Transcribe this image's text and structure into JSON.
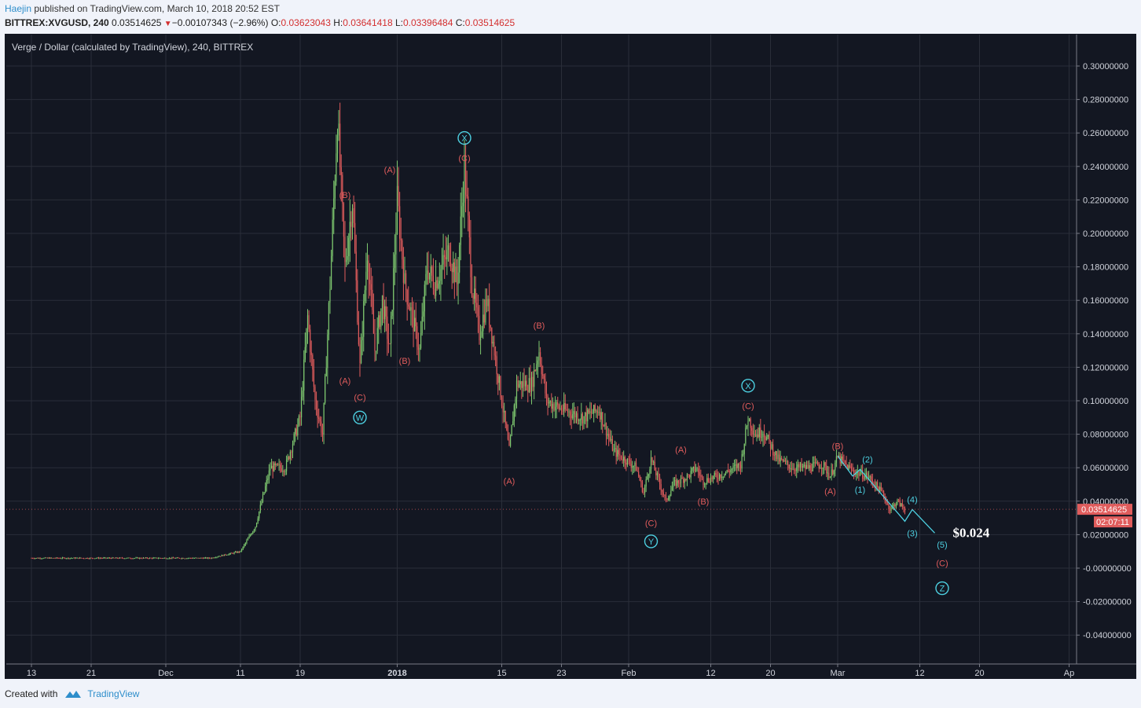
{
  "header": {
    "author": "Haejin",
    "published": " published on TradingView.com, March 10, 2018 20:52 EST",
    "symbol": "BITTREX:XVGUSD, 240",
    "last": "0.03514625",
    "change": "−0.00107343 (−2.96%)",
    "o_label": "O:",
    "o": "0.03623043",
    "h_label": "H:",
    "h": "0.03641418",
    "l_label": "L:",
    "l": "0.03396484",
    "c_label": "C:",
    "c": "0.03514625"
  },
  "footer": {
    "created_with": "Created with",
    "brand": "TradingView"
  },
  "chart_data": {
    "type": "candlestick",
    "title": "Verge / Dollar (calculated by TradingView), 240, BITTREX",
    "ylim": [
      -0.05,
      0.31
    ],
    "y_ticks": [
      "0.30000000",
      "0.28000000",
      "0.26000000",
      "0.24000000",
      "0.22000000",
      "0.20000000",
      "0.18000000",
      "0.16000000",
      "0.14000000",
      "0.12000000",
      "0.10000000",
      "0.08000000",
      "0.06000000",
      "0.04000000",
      "0.02000000",
      "-0.00000000",
      "-0.02000000",
      "-0.04000000"
    ],
    "y_tick_values": [
      0.3,
      0.28,
      0.26,
      0.24,
      0.22,
      0.2,
      0.18,
      0.16,
      0.14,
      0.12,
      0.1,
      0.08,
      0.06,
      0.04,
      0.02,
      0.0,
      -0.02,
      -0.04
    ],
    "x_axis": "date (4h candles), 2017-11-13 to 2018-04-01",
    "x_ticks": [
      {
        "label": "13",
        "date": "2017-11-13"
      },
      {
        "label": "21",
        "date": "2017-11-21"
      },
      {
        "label": "Dec",
        "date": "2017-12-01"
      },
      {
        "label": "11",
        "date": "2017-12-11"
      },
      {
        "label": "19",
        "date": "2017-12-19"
      },
      {
        "label": "2018",
        "date": "2018-01-01"
      },
      {
        "label": "15",
        "date": "2018-01-15"
      },
      {
        "label": "23",
        "date": "2018-01-23"
      },
      {
        "label": "Feb",
        "date": "2018-02-01"
      },
      {
        "label": "12",
        "date": "2018-02-12"
      },
      {
        "label": "20",
        "date": "2018-02-20"
      },
      {
        "label": "Mar",
        "date": "2018-03-01"
      },
      {
        "label": "12",
        "date": "2018-03-12"
      },
      {
        "label": "20",
        "date": "2018-03-20"
      },
      {
        "label": "Ap",
        "date": "2018-04-01"
      }
    ],
    "price_path": [
      [
        "2017-11-13",
        0.006
      ],
      [
        "2017-12-07",
        0.006
      ],
      [
        "2017-12-11",
        0.01
      ],
      [
        "2017-12-13",
        0.025
      ],
      [
        "2017-12-15",
        0.06
      ],
      [
        "2017-12-17",
        0.06
      ],
      [
        "2017-12-19",
        0.09
      ],
      [
        "2017-12-20",
        0.15
      ],
      [
        "2017-12-21",
        0.1
      ],
      [
        "2017-12-22",
        0.08
      ],
      [
        "2017-12-23",
        0.17
      ],
      [
        "2017-12-24",
        0.27
      ],
      [
        "2017-12-25",
        0.18
      ],
      [
        "2017-12-26",
        0.22
      ],
      [
        "2017-12-27",
        0.12
      ],
      [
        "2017-12-28",
        0.19
      ],
      [
        "2017-12-29",
        0.13
      ],
      [
        "2017-12-30",
        0.16
      ],
      [
        "2017-12-31",
        0.13
      ],
      [
        "2018-01-01",
        0.22
      ],
      [
        "2018-01-02",
        0.17
      ],
      [
        "2018-01-03",
        0.15
      ],
      [
        "2018-01-04",
        0.13
      ],
      [
        "2018-01-05",
        0.18
      ],
      [
        "2018-01-06",
        0.17
      ],
      [
        "2018-01-08",
        0.19
      ],
      [
        "2018-01-09",
        0.17
      ],
      [
        "2018-01-10",
        0.24
      ],
      [
        "2018-01-11",
        0.17
      ],
      [
        "2018-01-12",
        0.14
      ],
      [
        "2018-01-13",
        0.16
      ],
      [
        "2018-01-14",
        0.13
      ],
      [
        "2018-01-15",
        0.1
      ],
      [
        "2018-01-16",
        0.07
      ],
      [
        "2018-01-17",
        0.11
      ],
      [
        "2018-01-19",
        0.11
      ],
      [
        "2018-01-20",
        0.13
      ],
      [
        "2018-01-21",
        0.1
      ],
      [
        "2018-01-23",
        0.095
      ],
      [
        "2018-01-26",
        0.09
      ],
      [
        "2018-01-28",
        0.095
      ],
      [
        "2018-01-30",
        0.07
      ],
      [
        "2018-02-02",
        0.06
      ],
      [
        "2018-02-03",
        0.045
      ],
      [
        "2018-02-04",
        0.065
      ],
      [
        "2018-02-06",
        0.04
      ],
      [
        "2018-02-07",
        0.05
      ],
      [
        "2018-02-09",
        0.055
      ],
      [
        "2018-02-10",
        0.06
      ],
      [
        "2018-02-11",
        0.052
      ],
      [
        "2018-02-14",
        0.057
      ],
      [
        "2018-02-16",
        0.062
      ],
      [
        "2018-02-17",
        0.09
      ],
      [
        "2018-02-18",
        0.08
      ],
      [
        "2018-02-19",
        0.082
      ],
      [
        "2018-02-21",
        0.065
      ],
      [
        "2018-02-23",
        0.06
      ],
      [
        "2018-02-25",
        0.06
      ],
      [
        "2018-02-27",
        0.062
      ],
      [
        "2018-02-28",
        0.055
      ],
      [
        "2018-03-01",
        0.066
      ],
      [
        "2018-03-03",
        0.058
      ],
      [
        "2018-03-05",
        0.055
      ],
      [
        "2018-03-07",
        0.045
      ],
      [
        "2018-03-08",
        0.035
      ],
      [
        "2018-03-09",
        0.04
      ],
      [
        "2018-03-10",
        0.035
      ]
    ],
    "last_price_label": "0.03514625",
    "countdown_label": "02:07:11",
    "target_label": "$0.024",
    "projection": [
      [
        "2018-03-01",
        0.067
      ],
      [
        "2018-03-03",
        0.055
      ],
      [
        "2018-03-04",
        0.059
      ],
      [
        "2018-03-10",
        0.028
      ],
      [
        "2018-03-11",
        0.035
      ],
      [
        "2018-03-14",
        0.021
      ]
    ],
    "wave_labels": [
      {
        "text": "(B)",
        "date": "2017-12-25",
        "price": 0.223,
        "kind": "red"
      },
      {
        "text": "(A)",
        "date": "2017-12-25",
        "price": 0.112,
        "kind": "red"
      },
      {
        "text": "(C)",
        "date": "2017-12-27",
        "price": 0.102,
        "kind": "red"
      },
      {
        "text": "W",
        "date": "2017-12-27",
        "price": 0.09,
        "kind": "circle"
      },
      {
        "text": "(A)",
        "date": "2017-12-31",
        "price": 0.238,
        "kind": "red"
      },
      {
        "text": "(B)",
        "date": "2018-01-02",
        "price": 0.124,
        "kind": "red"
      },
      {
        "text": "(C)",
        "date": "2018-01-10",
        "price": 0.245,
        "kind": "red"
      },
      {
        "text": "X",
        "date": "2018-01-10",
        "price": 0.257,
        "kind": "circle"
      },
      {
        "text": "(A)",
        "date": "2018-01-16",
        "price": 0.052,
        "kind": "red"
      },
      {
        "text": "(B)",
        "date": "2018-01-20",
        "price": 0.145,
        "kind": "red"
      },
      {
        "text": "(C)",
        "date": "2018-02-04",
        "price": 0.027,
        "kind": "red"
      },
      {
        "text": "Y",
        "date": "2018-02-04",
        "price": 0.016,
        "kind": "circle"
      },
      {
        "text": "(A)",
        "date": "2018-02-08",
        "price": 0.071,
        "kind": "red"
      },
      {
        "text": "(B)",
        "date": "2018-02-11",
        "price": 0.04,
        "kind": "red"
      },
      {
        "text": "(C)",
        "date": "2018-02-17",
        "price": 0.097,
        "kind": "red"
      },
      {
        "text": "X",
        "date": "2018-02-17",
        "price": 0.109,
        "kind": "circle"
      },
      {
        "text": "(B)",
        "date": "2018-03-01",
        "price": 0.073,
        "kind": "red"
      },
      {
        "text": "(A)",
        "date": "2018-02-28",
        "price": 0.046,
        "kind": "red"
      },
      {
        "text": "(1)",
        "date": "2018-03-04",
        "price": 0.047,
        "kind": "cyan"
      },
      {
        "text": "(2)",
        "date": "2018-03-05",
        "price": 0.065,
        "kind": "cyan"
      },
      {
        "text": "(3)",
        "date": "2018-03-11",
        "price": 0.021,
        "kind": "cyan"
      },
      {
        "text": "(4)",
        "date": "2018-03-11",
        "price": 0.041,
        "kind": "cyan"
      },
      {
        "text": "(5)",
        "date": "2018-03-15",
        "price": 0.014,
        "kind": "cyan"
      },
      {
        "text": "(C)",
        "date": "2018-03-15",
        "price": 0.003,
        "kind": "red"
      },
      {
        "text": "Z",
        "date": "2018-03-15",
        "price": -0.012,
        "kind": "circle"
      }
    ],
    "colors": {
      "up": "#7ec86f",
      "down": "#e05c5c",
      "grid": "#2a2e39",
      "bg": "#131722",
      "axis_text": "#d1d4dc",
      "red_label": "#e05c5c",
      "cyan": "#4dd0e1",
      "price_tag": "#e05c5c"
    }
  }
}
